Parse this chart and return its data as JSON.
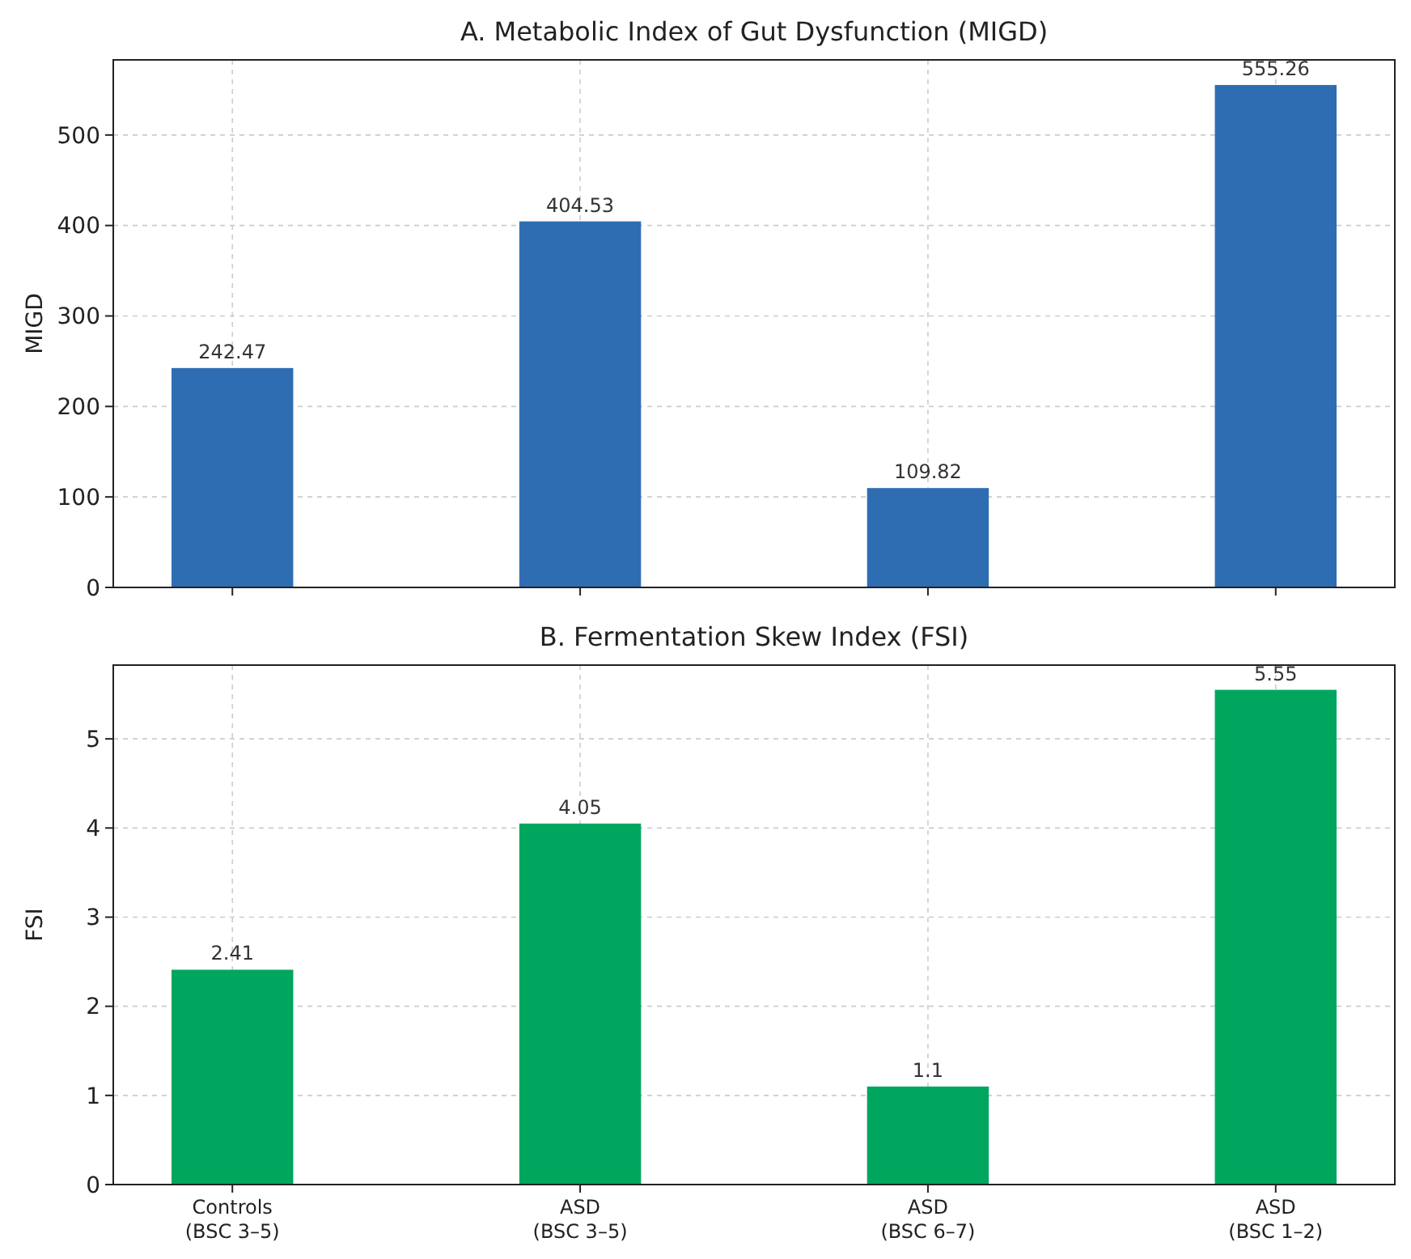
{
  "chart_data": [
    {
      "type": "bar",
      "title": "A. Metabolic Index of Gut Dysfunction (MIGD)",
      "ylabel": "MIGD",
      "values": [
        242.47,
        404.53,
        109.82,
        555.26
      ],
      "color": "#2f6db3",
      "ylim": [
        0,
        583.02
      ],
      "yticks": [
        0,
        100,
        200,
        300,
        400,
        500
      ],
      "grid": true,
      "data_labels": true,
      "tick_labels": "y"
    },
    {
      "type": "bar",
      "title": "B. Fermentation Skew Index (FSI)",
      "ylabel": "FSI",
      "categories": [
        "Controls\n(BSC 3–5)",
        "ASD\n(BSC 3–5)",
        "ASD\n(BSC 6–7)",
        "ASD\n(BSC 1–2)"
      ],
      "values": [
        2.41,
        4.05,
        1.1,
        5.55
      ],
      "color": "#00a65d",
      "ylim": [
        0,
        5.8275
      ],
      "yticks": [
        0,
        1,
        2,
        3,
        4,
        5
      ],
      "grid": true,
      "data_labels": true
    }
  ]
}
